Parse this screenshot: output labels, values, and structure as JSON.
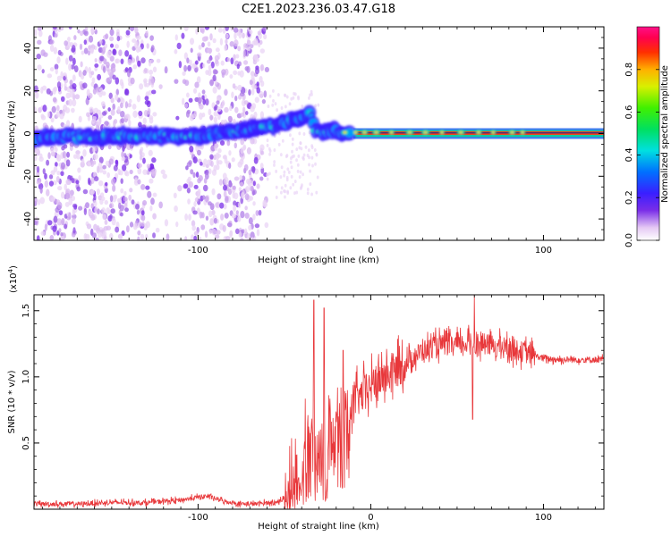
{
  "title": "C2E1.2023.236.03.47.G18",
  "chart_data": [
    {
      "type": "heatmap",
      "xlabel": "Height of straight line (km)",
      "ylabel": "Frequency (Hz)",
      "xlim": [
        -195,
        135
      ],
      "ylim": [
        -50,
        50
      ],
      "x_ticks": [
        -100,
        0,
        100
      ],
      "x_tick_labels": [
        "-100",
        "0",
        "100"
      ],
      "y_ticks": [
        -40,
        -20,
        0,
        20,
        40
      ],
      "y_tick_labels": [
        "-40",
        "-20",
        "0",
        "20",
        "40"
      ],
      "colorbar": {
        "label": "Normalized spectral amplitude",
        "range": [
          0,
          1
        ],
        "ticks": [
          0.0,
          0.2,
          0.4,
          0.6,
          0.8
        ],
        "tick_labels": [
          "0.0",
          "0.2",
          "0.4",
          "0.6",
          "0.8"
        ]
      },
      "ridge": {
        "x": [
          -195,
          -180,
          -160,
          -140,
          -120,
          -100,
          -80,
          -60,
          -50,
          -40,
          -36,
          -32,
          -28,
          -24,
          -20,
          -15,
          -10,
          -5,
          0,
          10,
          20,
          50,
          80,
          100,
          135
        ],
        "y": [
          -2,
          -1,
          -2,
          -1,
          -1,
          -1,
          1,
          3,
          5,
          8,
          10,
          2,
          0,
          2,
          1,
          0.5,
          0.5,
          0.5,
          0.5,
          0.5,
          0.5,
          0.5,
          0.5,
          0.5,
          0.5
        ]
      },
      "grid": false,
      "legend": "none"
    },
    {
      "type": "line",
      "xlabel": "Height of straight line (km)",
      "ylabel": "SNR (10 * v/v)",
      "y_multiplier_label": "(x10",
      "y_multiplier_exp": "4",
      "y_multiplier_close": ")",
      "xlim": [
        -195,
        135
      ],
      "ylim": [
        0,
        1.62
      ],
      "x_ticks": [
        -100,
        0,
        100
      ],
      "x_tick_labels": [
        "-100",
        "0",
        "100"
      ],
      "y_ticks": [
        0.5,
        1.0,
        1.5
      ],
      "y_tick_labels": [
        "0.5",
        "1.0",
        "1.5"
      ],
      "series": [
        {
          "color": "#e8373a",
          "x": [
            -195,
            -170,
            -150,
            -130,
            -110,
            -100,
            -95,
            -85,
            -75,
            -65,
            -60,
            -55,
            -50,
            -45,
            -40,
            -36,
            -33,
            -31,
            -28,
            -25,
            -22,
            -18,
            -14,
            -10,
            -6,
            -2,
            2,
            8,
            14,
            20,
            25,
            30,
            35,
            40,
            50,
            60,
            70,
            80,
            90,
            95,
            100,
            110,
            120,
            135
          ],
          "y": [
            0.04,
            0.04,
            0.05,
            0.05,
            0.07,
            0.09,
            0.1,
            0.06,
            0.04,
            0.04,
            0.05,
            0.05,
            0.08,
            0.15,
            0.3,
            0.55,
            0.7,
            0.35,
            0.5,
            0.45,
            0.6,
            0.65,
            0.75,
            0.82,
            0.85,
            0.9,
            0.95,
            1.0,
            1.05,
            1.1,
            1.15,
            1.2,
            1.22,
            1.24,
            1.24,
            1.26,
            1.24,
            1.22,
            1.18,
            1.16,
            1.14,
            1.13,
            1.13,
            1.13
          ]
        }
      ],
      "spikes": [
        {
          "x": -33,
          "y": 1.58
        },
        {
          "x": -27,
          "y": 1.52
        },
        {
          "x": -16,
          "y": 1.2
        },
        {
          "x": 60,
          "y": 1.62
        },
        {
          "x": 59,
          "y": 0.68
        }
      ],
      "grid": false,
      "legend": "none"
    }
  ]
}
